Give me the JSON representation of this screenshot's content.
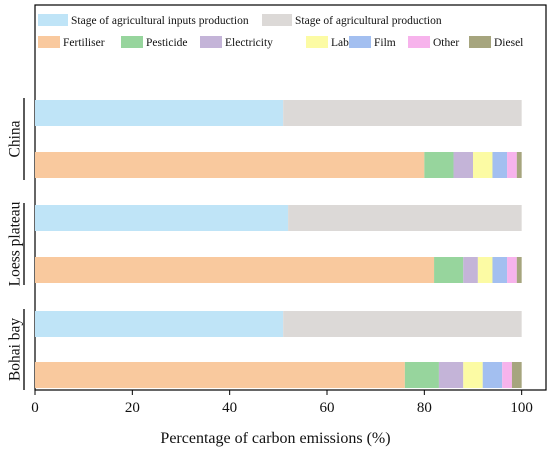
{
  "chart_data": {
    "type": "bar",
    "orientation": "horizontal",
    "stacked": true,
    "xlabel": "Percentage of carbon emissions (%)",
    "xlim": [
      0,
      105
    ],
    "xticks": [
      0,
      20,
      40,
      60,
      80,
      100
    ],
    "legend_placement": "top-inside",
    "groups": [
      {
        "label": "China",
        "bars": [
          {
            "kind": "stage",
            "values": {
              "Stage of agricultural inputs production": 51,
              "Stage of agricultural  production": 49
            }
          },
          {
            "kind": "input",
            "values": {
              "Fertiliser": 80,
              "Pesticide": 6,
              "Electricity": 4,
              "Labour": 4,
              "Film": 3,
              "Other": 2,
              "Diesel": 1
            }
          }
        ]
      },
      {
        "label": "Loess plateau",
        "bars": [
          {
            "kind": "stage",
            "values": {
              "Stage of agricultural inputs production": 52,
              "Stage of agricultural  production": 48
            }
          },
          {
            "kind": "input",
            "values": {
              "Fertiliser": 82,
              "Pesticide": 6,
              "Electricity": 3,
              "Labour": 3,
              "Film": 3,
              "Other": 2,
              "Diesel": 1
            }
          }
        ]
      },
      {
        "label": "Bohai bay",
        "bars": [
          {
            "kind": "stage",
            "values": {
              "Stage of agricultural inputs production": 51,
              "Stage of agricultural  production": 49
            }
          },
          {
            "kind": "input",
            "values": {
              "Fertiliser": 76,
              "Pesticide": 7,
              "Electricity": 5,
              "Labour": 4,
              "Film": 4,
              "Other": 2,
              "Diesel": 2
            }
          }
        ]
      }
    ],
    "series": [
      {
        "name": "Stage of agricultural inputs production",
        "color": "#bfe4f7"
      },
      {
        "name": "Stage of agricultural  production",
        "color": "#dcd9d7"
      },
      {
        "name": "Fertiliser",
        "color": "#f9c99e"
      },
      {
        "name": "Pesticide",
        "color": "#97d59d"
      },
      {
        "name": "Electricity",
        "color": "#c4b4d8"
      },
      {
        "name": "Labour",
        "color": "#fcfba4"
      },
      {
        "name": "Film",
        "color": "#a3bff0"
      },
      {
        "name": "Other",
        "color": "#f7b3ec"
      },
      {
        "name": "Diesel",
        "color": "#a6a57e"
      }
    ]
  }
}
